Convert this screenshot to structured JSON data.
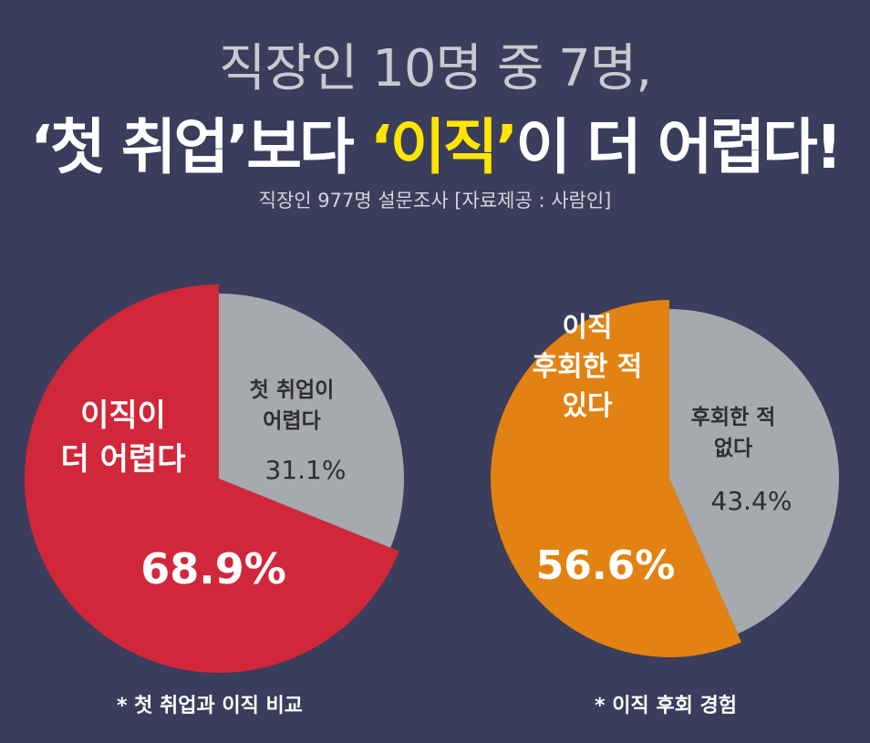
{
  "header": {
    "line1": "직장인 10명 중 7명,",
    "line2_part1": "‘첫 취업’보다 ",
    "line2_highlight": "‘이직’",
    "line2_part2": "이 더 어렵다!",
    "subtitle": "직장인 977명 설문조사 [자료제공 : 사람인]"
  },
  "colors": {
    "background": "#3a3d5c",
    "red": "#d0283a",
    "orange": "#e28212",
    "gray": "#a6a9ad",
    "highlight": "#ffe600"
  },
  "chart_data": [
    {
      "type": "pie",
      "caption": "* 첫 취업과 이직 비교",
      "slices": [
        {
          "label_lines": [
            "이직이",
            "더 어렵다"
          ],
          "value": 68.9,
          "value_label": "68.9%",
          "color": "#d0283a"
        },
        {
          "label_lines": [
            "첫 취업이",
            "어렵다"
          ],
          "value": 31.1,
          "value_label": "31.1%",
          "color": "#a6a9ad"
        }
      ]
    },
    {
      "type": "pie",
      "caption": "* 이직 후회 경험",
      "slices": [
        {
          "label_lines": [
            "이직",
            "후회한 적",
            "있다"
          ],
          "value": 56.6,
          "value_label": "56.6%",
          "color": "#e28212"
        },
        {
          "label_lines": [
            "후회한 적",
            "없다"
          ],
          "value": 43.4,
          "value_label": "43.4%",
          "color": "#a6a9ad"
        }
      ]
    }
  ]
}
